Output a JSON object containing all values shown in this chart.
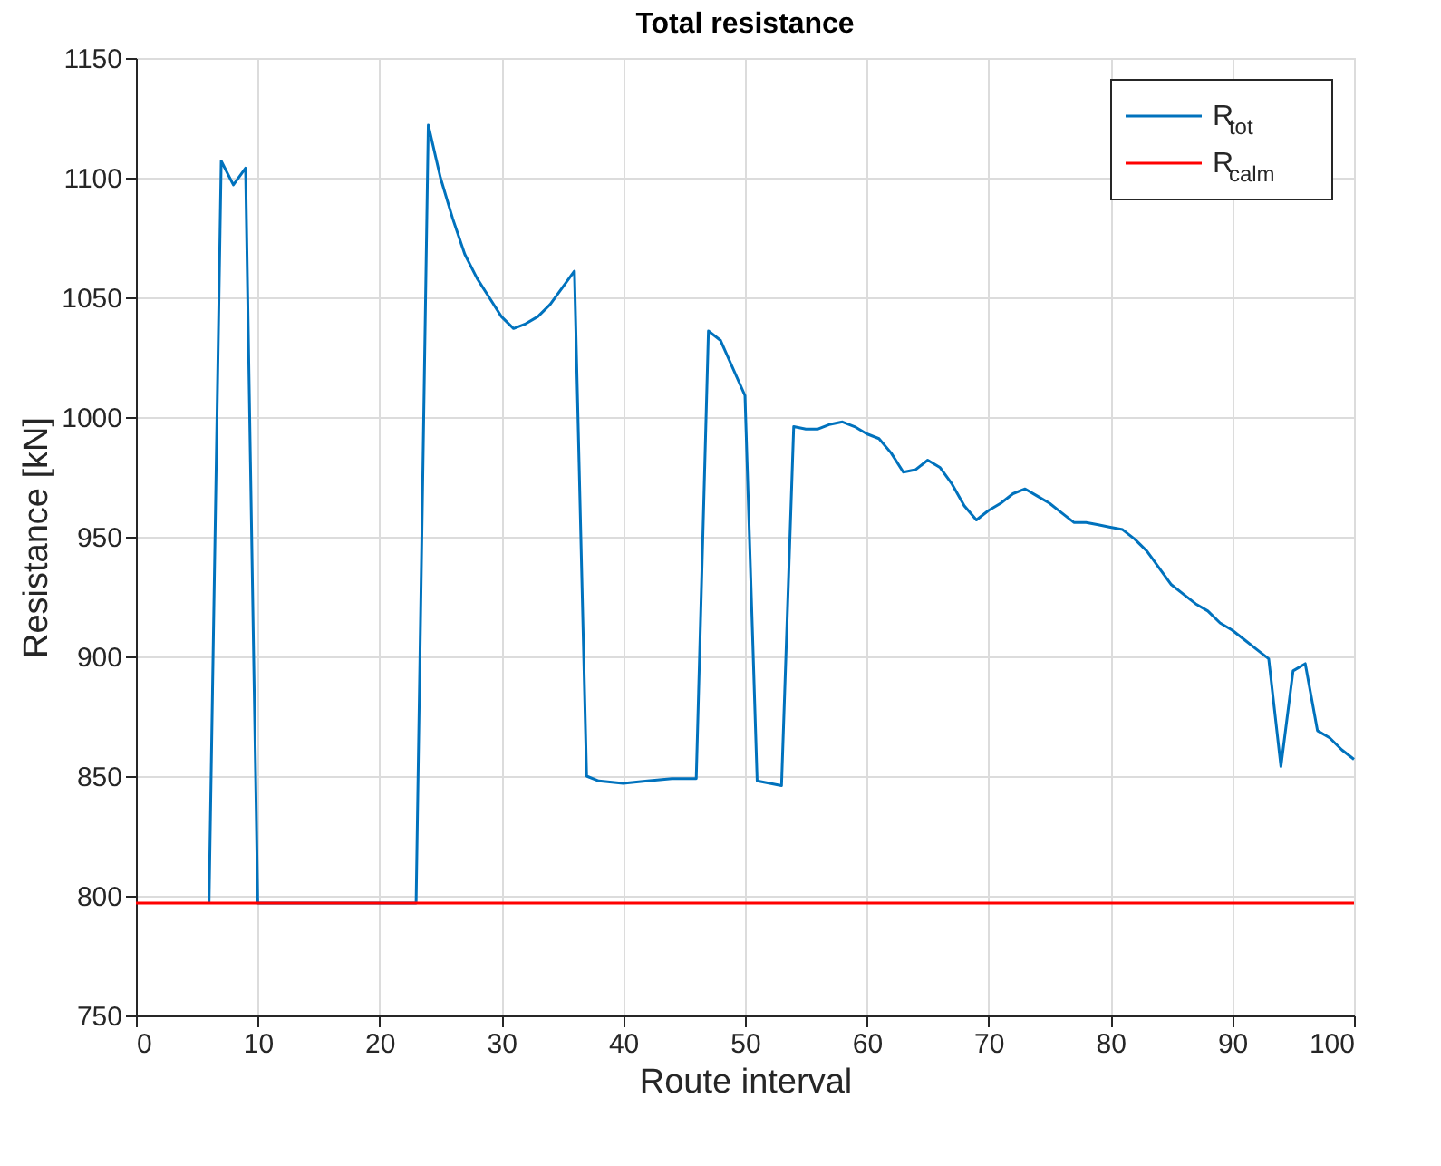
{
  "chart_data": {
    "type": "line",
    "title": "Total resistance",
    "xlabel": "Route interval",
    "ylabel": "Resistance [kN]",
    "series": [
      {
        "name": "R$_{tot}$",
        "color": "#0072bd",
        "x": [
          6,
          7,
          8,
          9,
          10,
          23,
          24,
          25,
          26,
          27,
          28,
          29,
          30,
          31,
          32,
          33,
          34,
          35,
          36,
          37,
          38,
          40,
          42,
          44,
          46,
          47,
          48,
          50,
          51,
          53,
          54,
          55,
          56,
          57,
          58,
          59,
          60,
          61,
          62,
          63,
          64,
          65,
          66,
          67,
          68,
          69,
          70,
          71,
          72,
          73,
          74,
          75,
          76,
          77,
          78,
          79,
          80,
          81,
          82,
          83,
          84,
          85,
          86,
          87,
          88,
          89,
          90,
          91,
          92,
          93,
          94,
          95,
          96,
          97,
          98,
          99,
          100
        ],
        "values": [
          797,
          1107,
          1097,
          1104,
          797,
          797,
          1122,
          1100,
          1083,
          1068,
          1058,
          1050,
          1042,
          1037,
          1039,
          1042,
          1047,
          1054,
          1061,
          850,
          848,
          847,
          848,
          849,
          849,
          1036,
          1032,
          1009,
          848,
          846,
          996,
          995,
          995,
          997,
          998,
          996,
          993,
          991,
          985,
          977,
          978,
          982,
          979,
          972,
          963,
          957,
          961,
          964,
          968,
          970,
          967,
          964,
          960,
          956,
          956,
          955,
          954,
          953,
          949,
          944,
          937,
          930,
          926,
          922,
          919,
          914,
          911,
          907,
          903,
          899,
          854,
          894,
          897,
          869,
          866,
          861,
          857
        ]
      },
      {
        "name": "R$_{calm}$",
        "color": "#ff0000",
        "x": [
          0,
          100
        ],
        "values": [
          797,
          797
        ]
      }
    ],
    "xlim": [
      0,
      100
    ],
    "xticks": [
      0,
      10,
      20,
      30,
      40,
      50,
      60,
      70,
      80,
      90,
      100
    ],
    "ylim": [
      750,
      1150
    ],
    "yticks": [
      750,
      800,
      850,
      900,
      950,
      1000,
      1050,
      1100,
      1150
    ],
    "grid": true,
    "legend": "top right",
    "line_style": "solid"
  }
}
